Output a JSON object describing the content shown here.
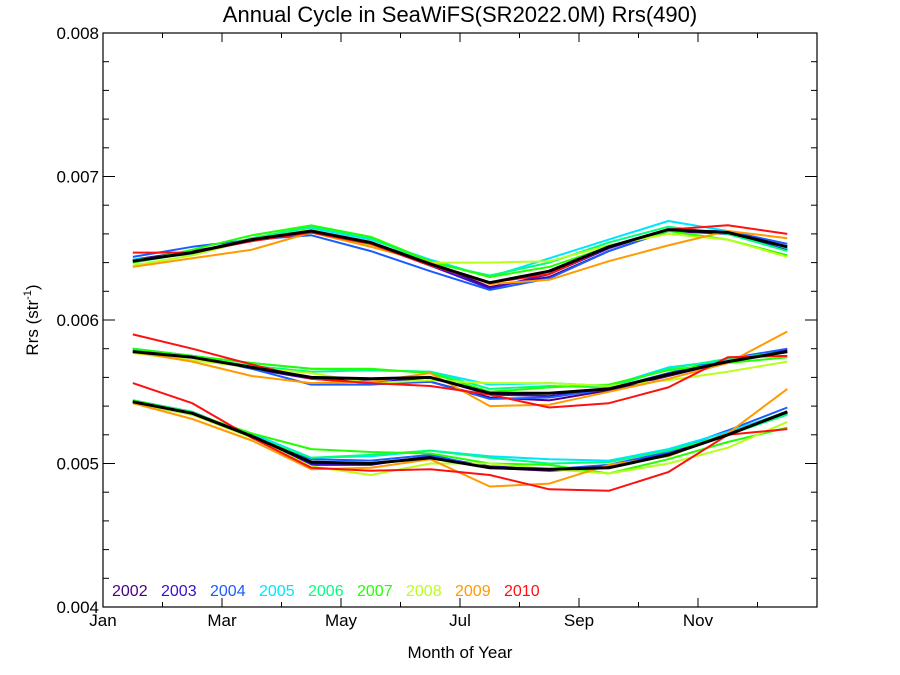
{
  "chart_data": {
    "type": "line",
    "title": "Annual Cycle in SeaWiFS(SR2022.0M) Rrs(490)",
    "xlabel": "Month of Year",
    "ylabel_main": "Rrs (str",
    "ylabel_sup": "-1",
    "ylabel_close": ")",
    "xlim": [
      0,
      12
    ],
    "ylim": [
      0.004,
      0.008
    ],
    "x_ticks": [
      {
        "value": 0,
        "label": "Jan"
      },
      {
        "value": 2,
        "label": "Mar"
      },
      {
        "value": 4,
        "label": "May"
      },
      {
        "value": 6,
        "label": "Jul"
      },
      {
        "value": 8,
        "label": "Sep"
      },
      {
        "value": 10,
        "label": "Nov"
      }
    ],
    "y_ticks": [
      {
        "value": 0.004,
        "label": "0.004"
      },
      {
        "value": 0.005,
        "label": "0.005"
      },
      {
        "value": 0.006,
        "label": "0.006"
      },
      {
        "value": 0.007,
        "label": "0.007"
      },
      {
        "value": 0.008,
        "label": "0.008"
      }
    ],
    "grid": false,
    "legend_position": "bottom-left",
    "series_x": [
      0.5,
      1.5,
      2.5,
      3.5,
      4.5,
      5.5,
      6.5,
      7.5,
      8.5,
      9.5,
      10.5,
      11.5
    ],
    "series": [
      {
        "name": "2002",
        "color": "#4b0082",
        "groups": [
          [
            0.00642,
            0.00648,
            0.00655,
            0.00661,
            0.00654,
            0.0064,
            0.00623,
            0.0063,
            0.00648,
            0.00662,
            0.0066,
            0.00649
          ],
          [
            0.00579,
            0.00574,
            0.00567,
            0.0056,
            0.00557,
            0.00557,
            0.00546,
            0.00544,
            0.00551,
            0.00561,
            0.00571,
            0.00579
          ],
          [
            0.00543,
            0.00535,
            0.0052,
            0.005,
            0.005,
            0.00504,
            0.00497,
            0.00495,
            0.00497,
            0.00506,
            0.00521,
            0.00535
          ]
        ]
      },
      {
        "name": "2003",
        "color": "#3a0ecc",
        "groups": [
          [
            0.00641,
            0.00647,
            0.00656,
            0.00662,
            0.00653,
            0.00638,
            0.00622,
            0.00632,
            0.0065,
            0.00663,
            0.0066,
            0.0065
          ],
          [
            0.00578,
            0.00575,
            0.00566,
            0.00559,
            0.00556,
            0.0056,
            0.00548,
            0.00547,
            0.00552,
            0.00562,
            0.00571,
            0.00578
          ],
          [
            0.00544,
            0.00536,
            0.00519,
            0.00499,
            0.00499,
            0.00505,
            0.00498,
            0.00496,
            0.00498,
            0.00507,
            0.0052,
            0.00536
          ]
        ]
      },
      {
        "name": "2004",
        "color": "#1a5cff",
        "groups": [
          [
            0.00644,
            0.00651,
            0.00656,
            0.00659,
            0.00648,
            0.00634,
            0.00621,
            0.00629,
            0.00648,
            0.00662,
            0.00662,
            0.00653
          ],
          [
            0.0058,
            0.00575,
            0.00566,
            0.00555,
            0.00555,
            0.00557,
            0.00545,
            0.00546,
            0.00552,
            0.00563,
            0.00573,
            0.0058
          ],
          [
            0.00542,
            0.00534,
            0.0052,
            0.00503,
            0.00502,
            0.00506,
            0.00497,
            0.00496,
            0.00499,
            0.00508,
            0.00523,
            0.00539
          ]
        ]
      },
      {
        "name": "2005",
        "color": "#00e5ff",
        "groups": [
          [
            0.00642,
            0.00646,
            0.00657,
            0.00664,
            0.00656,
            0.00642,
            0.0063,
            0.00643,
            0.00656,
            0.00669,
            0.00662,
            0.0065
          ],
          [
            0.0058,
            0.00575,
            0.0057,
            0.00566,
            0.00565,
            0.00564,
            0.00555,
            0.00556,
            0.00554,
            0.00567,
            0.00572,
            0.00578
          ],
          [
            0.00543,
            0.00534,
            0.00521,
            0.00504,
            0.00505,
            0.00509,
            0.00505,
            0.00503,
            0.00502,
            0.0051,
            0.00522,
            0.00536
          ]
        ]
      },
      {
        "name": "2006",
        "color": "#00ff7f",
        "groups": [
          [
            0.0064,
            0.00647,
            0.00657,
            0.00665,
            0.00657,
            0.0064,
            0.00631,
            0.0064,
            0.00654,
            0.00665,
            0.0066,
            0.00648
          ],
          [
            0.00579,
            0.00574,
            0.00568,
            0.00564,
            0.00565,
            0.00564,
            0.00552,
            0.00554,
            0.00553,
            0.00566,
            0.00573,
            0.00578
          ],
          [
            0.00544,
            0.00536,
            0.00519,
            0.00504,
            0.00506,
            0.00509,
            0.00504,
            0.005,
            0.00501,
            0.00509,
            0.0052,
            0.00534
          ]
        ]
      },
      {
        "name": "2007",
        "color": "#22ff00",
        "groups": [
          [
            0.0064,
            0.00649,
            0.00659,
            0.00666,
            0.00658,
            0.00641,
            0.0063,
            0.00637,
            0.00651,
            0.00662,
            0.00656,
            0.00645
          ],
          [
            0.0058,
            0.00575,
            0.0057,
            0.00566,
            0.00566,
            0.00563,
            0.0055,
            0.00553,
            0.00555,
            0.00565,
            0.0057,
            0.00574
          ],
          [
            0.00544,
            0.00535,
            0.00521,
            0.0051,
            0.00508,
            0.00507,
            0.005,
            0.00499,
            0.00493,
            0.00503,
            0.00515,
            0.00525
          ]
        ]
      },
      {
        "name": "2008",
        "color": "#b8ff1a",
        "groups": [
          [
            0.00638,
            0.00645,
            0.00656,
            0.00663,
            0.00652,
            0.0064,
            0.0064,
            0.00641,
            0.00652,
            0.0066,
            0.00656,
            0.00644
          ],
          [
            0.00577,
            0.00572,
            0.00567,
            0.00563,
            0.00556,
            0.00558,
            0.00556,
            0.00556,
            0.00554,
            0.00558,
            0.00564,
            0.00571
          ],
          [
            0.00542,
            0.00534,
            0.00518,
            0.00498,
            0.00492,
            0.005,
            0.005,
            0.00496,
            0.00493,
            0.005,
            0.00511,
            0.00529
          ]
        ]
      },
      {
        "name": "2009",
        "color": "#ff9a00",
        "groups": [
          [
            0.00637,
            0.00643,
            0.00649,
            0.00661,
            0.00651,
            0.0064,
            0.00625,
            0.00628,
            0.00641,
            0.00652,
            0.00662,
            0.00657
          ],
          [
            0.00578,
            0.00571,
            0.00561,
            0.00556,
            0.00557,
            0.00563,
            0.0054,
            0.00541,
            0.0055,
            0.00559,
            0.0057,
            0.00592
          ],
          [
            0.00542,
            0.00531,
            0.00516,
            0.00496,
            0.00497,
            0.00503,
            0.00484,
            0.00486,
            0.00499,
            0.00505,
            0.00521,
            0.00552
          ]
        ]
      },
      {
        "name": "2010",
        "color": "#ff1010",
        "groups": [
          [
            0.00647,
            0.00647,
            0.00655,
            0.00661,
            0.00653,
            0.00638,
            0.00626,
            0.00632,
            0.00651,
            0.00663,
            0.00666,
            0.0066
          ],
          [
            0.0059,
            0.0058,
            0.00569,
            0.00559,
            0.00556,
            0.00554,
            0.00548,
            0.00539,
            0.00542,
            0.00553,
            0.00574,
            0.00575
          ],
          [
            0.00556,
            0.00542,
            0.00518,
            0.00497,
            0.00495,
            0.00496,
            0.00492,
            0.00482,
            0.00481,
            0.00494,
            0.0052,
            0.00524
          ]
        ]
      },
      {
        "color": "#000000",
        "mean": true,
        "groups": [
          [
            0.00641,
            0.00647,
            0.00656,
            0.00662,
            0.00654,
            0.00639,
            0.00626,
            0.00634,
            0.00651,
            0.00663,
            0.00661,
            0.00651
          ],
          [
            0.00578,
            0.00574,
            0.00567,
            0.0056,
            0.00559,
            0.0056,
            0.00549,
            0.00549,
            0.00552,
            0.00562,
            0.00571,
            0.00578
          ],
          [
            0.00543,
            0.00535,
            0.00519,
            0.00501,
            0.005,
            0.00504,
            0.00497,
            0.00496,
            0.00497,
            0.00506,
            0.0052,
            0.00536
          ]
        ]
      }
    ]
  }
}
